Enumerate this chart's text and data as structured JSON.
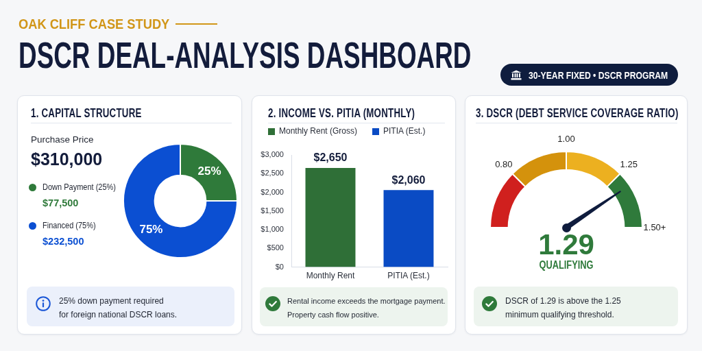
{
  "chart_data": [
    {
      "type": "other",
      "subtitle": "OAK CLIFF CASE STUDY",
      "title": "DSCR DEAL-ANALYSIS DASHBOARD",
      "annotations": [
        "30-YEAR FIXED • DSCR PROGRAM"
      ]
    },
    {
      "type": "donut",
      "title": "1. CAPITAL STRUCTURE",
      "categories": [
        "Down Payment (25%)",
        "Financed (75%)"
      ],
      "values": [
        25,
        75
      ],
      "colors": [
        "#2f7a3a",
        "#0b4fd2"
      ],
      "value_labels": [
        "25%",
        "75%"
      ],
      "legend": "left",
      "annotations": [
        "Purchase Price",
        "$310,000",
        "$77,500",
        "$232,500",
        "25% down payment required\nfor foreign national DSCR loans."
      ]
    },
    {
      "type": "bar",
      "title": "2. INCOME VS. PITIA (MONTHLY)",
      "categories": [
        "Monthly Rent",
        "PITIA (Est.)"
      ],
      "series": [
        {
          "name": "Monthly Rent (Gross)",
          "color": "#2f6f37",
          "values": [
            2650,
            null
          ],
          "value_labels": [
            "$2,650",
            null
          ]
        },
        {
          "name": "PITIA (Est.)",
          "color": "#0a4bc4",
          "values": [
            null,
            2060
          ],
          "value_labels": [
            null,
            "$2,060"
          ]
        }
      ],
      "ylim": [
        0,
        3000
      ],
      "yticks": [
        {
          "value": 0,
          "label": "$0"
        },
        {
          "value": 500,
          "label": "$500"
        },
        {
          "value": 1000,
          "label": "$1,000"
        },
        {
          "value": 1500,
          "label": "$1,500"
        },
        {
          "value": 2000,
          "label": "$2,000"
        },
        {
          "value": 2500,
          "label": "$2,500"
        },
        {
          "value": 3000,
          "label": "$3,000"
        }
      ],
      "legend": "top left",
      "annotations": [
        "Rental income exceeds the mortgage payment.\nProperty cash flow positive."
      ]
    },
    {
      "type": "donut",
      "title": "3. DSCR (DEBT SERVICE COVERAGE RATIO)",
      "categories": [
        "0.80",
        "1.00",
        "1.25",
        "1.50+"
      ],
      "values": [
        25,
        25,
        25,
        25
      ],
      "colors": [
        "#d0201e",
        "#d4920c",
        "#ecb020",
        "#2f7a3b"
      ],
      "needle": "1.50+",
      "annotations": [
        "1.29",
        "QUALIFYING",
        "DSCR of 1.29 is above the 1.25\nminimum qualifying threshold."
      ]
    }
  ]
}
